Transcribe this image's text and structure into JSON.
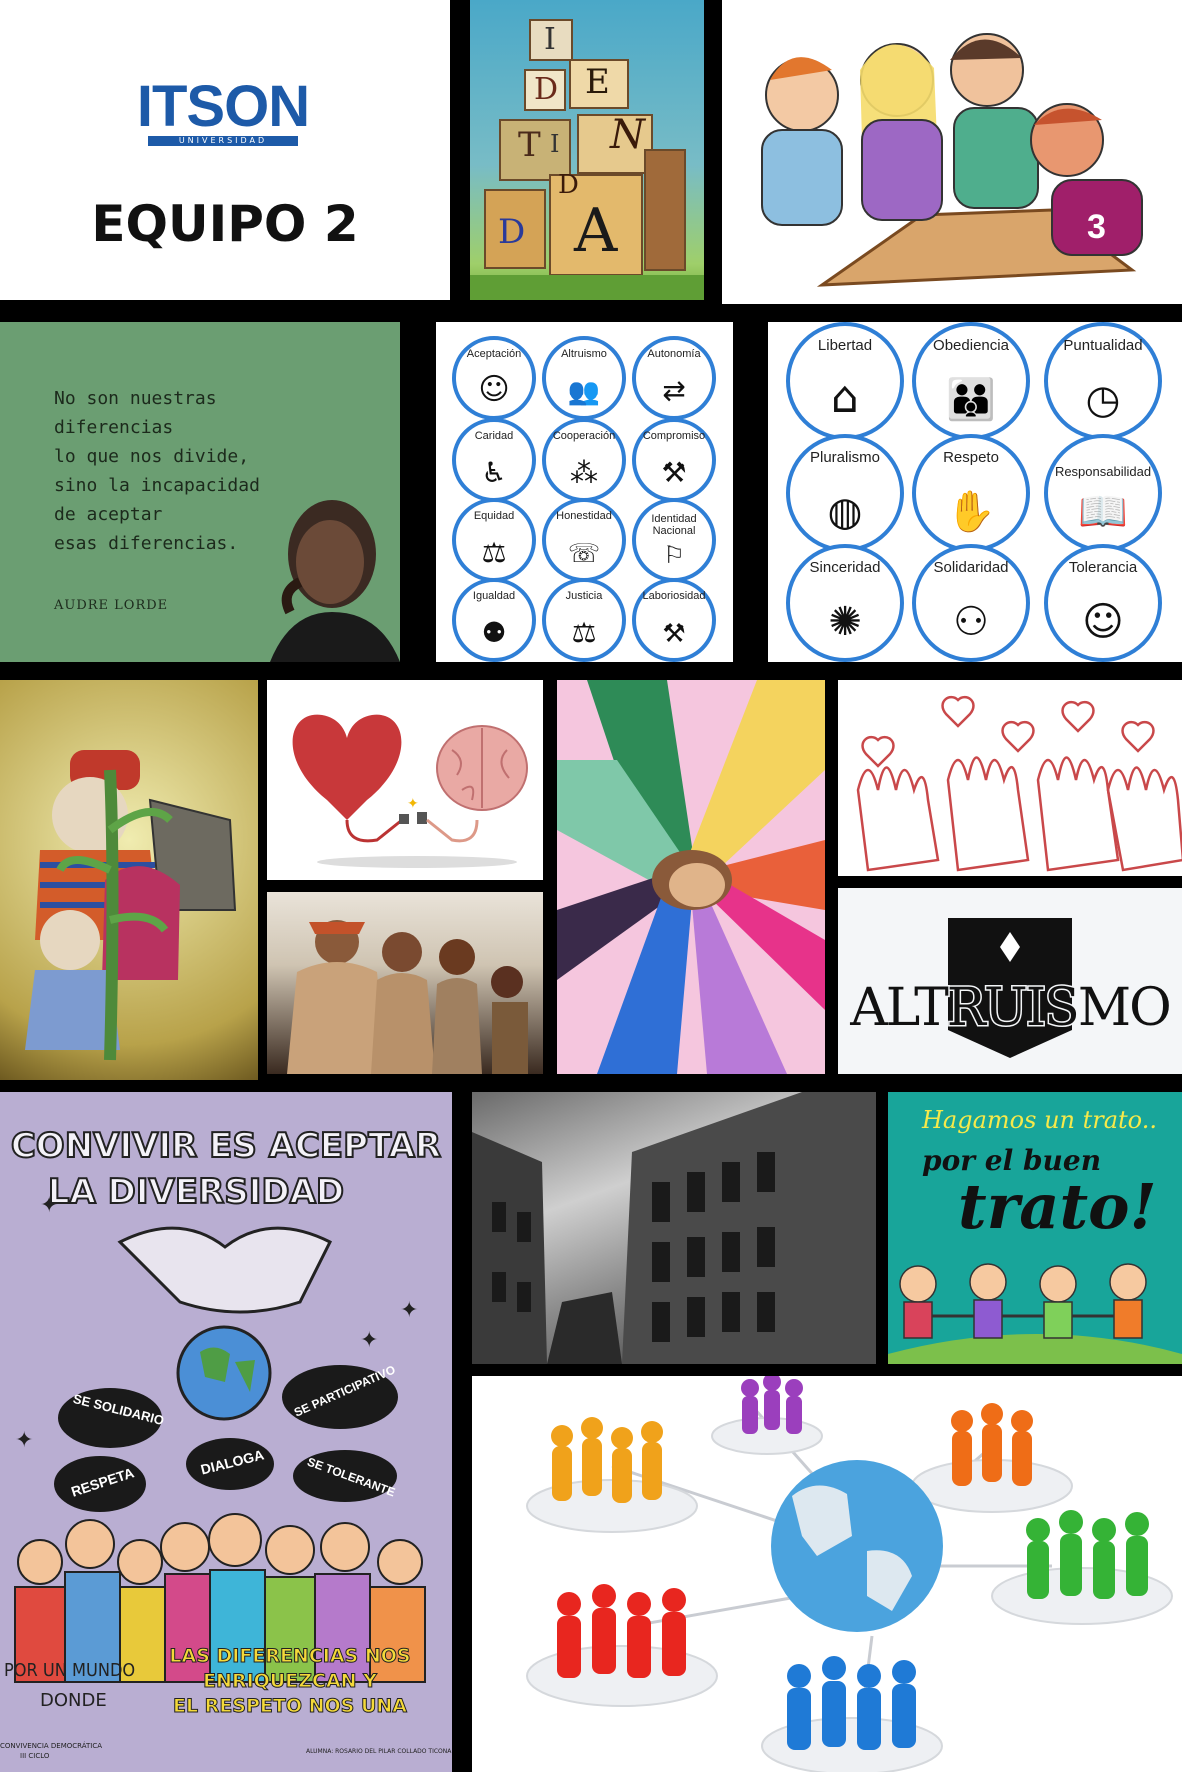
{
  "logo": {
    "name": "ITSON",
    "subtitle": "UNIVERSIDAD"
  },
  "team_title": "EQUIPO 2",
  "identidad_letters": [
    "I",
    "D",
    "E",
    "N",
    "T",
    "I",
    "D",
    "A",
    "D"
  ],
  "quote": {
    "lines": [
      "No son nuestras",
      "diferencias",
      "lo que nos divide,",
      "sino la incapacidad",
      "de aceptar",
      "esas diferencias."
    ],
    "author": "AUDRE LORDE"
  },
  "values_left": [
    {
      "label": "Aceptación",
      "icon": "acceptance-icon"
    },
    {
      "label": "Altruismo",
      "icon": "altruism-icon"
    },
    {
      "label": "Autonomía",
      "icon": "autonomy-icon"
    },
    {
      "label": "Caridad",
      "icon": "charity-icon"
    },
    {
      "label": "Cooperación",
      "icon": "cooperation-icon"
    },
    {
      "label": "Compromiso",
      "icon": "commitment-icon"
    },
    {
      "label": "Equidad",
      "icon": "equity-icon"
    },
    {
      "label": "Honestidad",
      "icon": "honesty-icon"
    },
    {
      "label": "Identidad Nacional",
      "icon": "flag-icon"
    },
    {
      "label": "Igualdad",
      "icon": "equality-icon"
    },
    {
      "label": "Justicia",
      "icon": "justice-icon"
    },
    {
      "label": "Laboriosidad",
      "icon": "work-icon"
    }
  ],
  "values_right": [
    {
      "label": "Libertad",
      "icon": "birdcage-icon"
    },
    {
      "label": "Obediencia",
      "icon": "family-icon"
    },
    {
      "label": "Puntualidad",
      "icon": "clock-icon"
    },
    {
      "label": "Pluralismo",
      "icon": "globe-people-icon"
    },
    {
      "label": "Respeto",
      "icon": "high-five-icon"
    },
    {
      "label": "Responsabilidad",
      "icon": "reading-icon"
    },
    {
      "label": "Sinceridad",
      "icon": "joy-icon"
    },
    {
      "label": "Solidaridad",
      "icon": "network-people-icon"
    },
    {
      "label": "Tolerancia",
      "icon": "dialogue-icon"
    }
  ],
  "altruismo_title": "ALTRUISMO",
  "poster": {
    "headline_1": "CONVIVIR ES ACEPTAR",
    "headline_2": "LA DIVERSIDAD",
    "bubbles": [
      "SE SOLIDARIO",
      "SE PARTICIPATIVO",
      "RESPETA",
      "DIALOGA",
      "SE TOLERANTE"
    ],
    "footer_left_1": "POR UN MUNDO",
    "footer_left_2": "DONDE",
    "footer_right_1": "LAS DIFERENCIAS NOS",
    "footer_right_2": "ENRIQUEZCAN Y",
    "footer_right_3": "EL RESPETO NOS UNA",
    "tiny_left_1": "CONVIVENCIA DEMOCRÁTICA",
    "tiny_left_2": "III CICLO",
    "tiny_right": "ALUMNA: ROSARIO DEL PILAR COLLADO TICONA"
  },
  "trato": {
    "line1": "Hagamos un trato..",
    "line2": "por el buen",
    "line3": "trato!"
  },
  "colors": {
    "itson_blue": "#1d5aa8",
    "quote_green": "#6b9e72",
    "poster_lilac": "#b9aed2",
    "trato_teal": "#18a59a",
    "circle_blue": "#2f7fd6"
  }
}
